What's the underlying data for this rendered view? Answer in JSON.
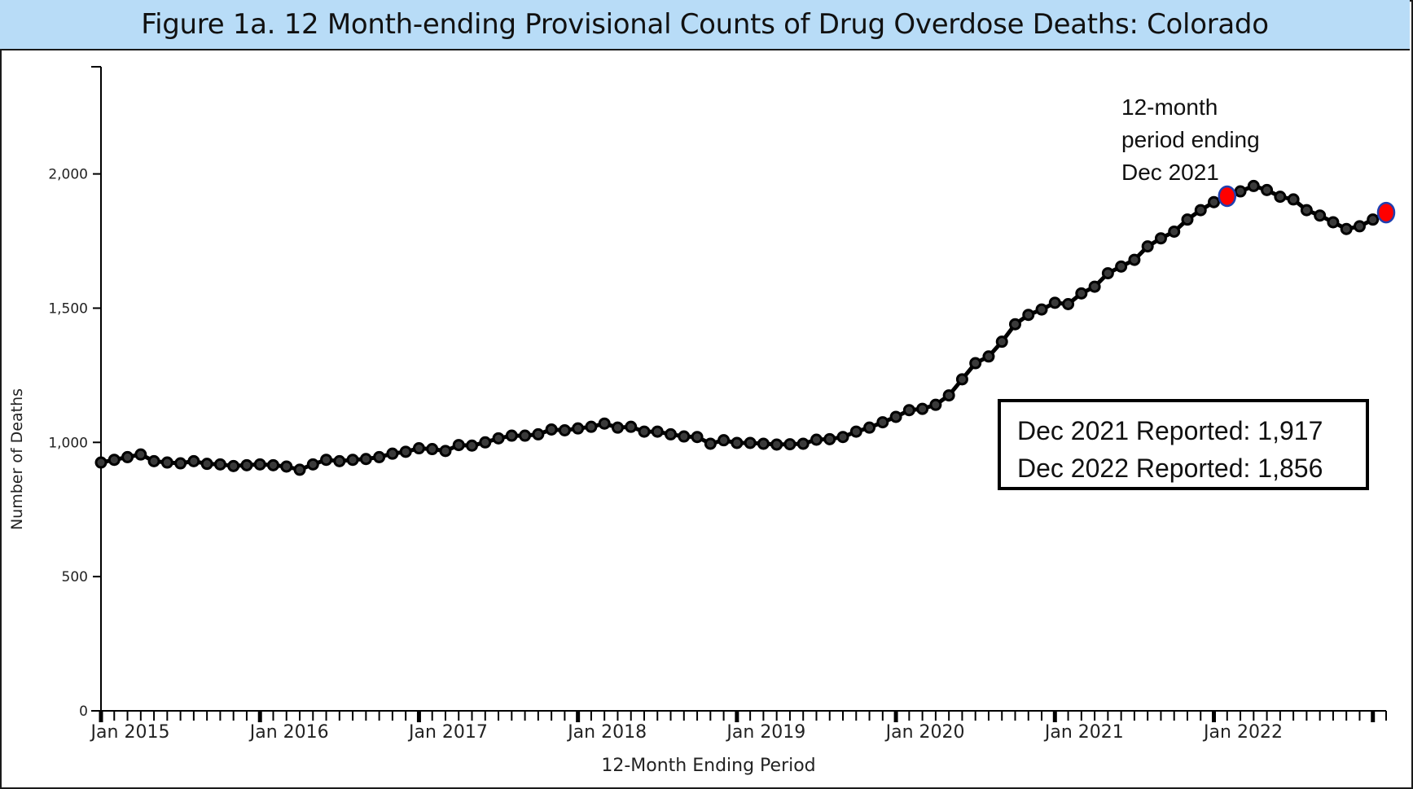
{
  "figure": {
    "title": "Figure 1a. 12 Month-ending Provisional Counts of Drug Overdose Deaths: Colorado"
  },
  "annotation": {
    "line1": "12-month",
    "line2": "period ending",
    "line3": "Dec 2021"
  },
  "summary": {
    "line1": "Dec 2021 Reported: 1,917",
    "line2": "Dec 2022 Reported: 1,856"
  },
  "colors": {
    "line": "#000000",
    "highlight_fill": "#ff0000",
    "highlight_stroke": "#1f3fb0",
    "title_bg": "#b8dcf7"
  },
  "chart_data": {
    "type": "line",
    "title": "Figure 1a. 12 Month-ending Provisional Counts of Drug Overdose Deaths: Colorado",
    "xlabel": "12-Month Ending Period",
    "ylabel": "Number of Deaths",
    "ylim": [
      0,
      2400
    ],
    "yticks": [
      0,
      500,
      1000,
      1500,
      2000
    ],
    "ytick_labels": [
      "0",
      "500",
      "1,000",
      "1,500",
      "2,000"
    ],
    "xtick_labels": [
      "Jan 2015",
      "Jan 2016",
      "Jan 2017",
      "Jan 2018",
      "Jan 2019",
      "Jan 2020",
      "Jan 2021",
      "Jan 2022"
    ],
    "x_start": "Jan 2015",
    "x_end": "Dec 2022",
    "grid": false,
    "legend": "none",
    "series": [
      {
        "values": [
          925,
          935,
          945,
          955,
          930,
          925,
          922,
          930,
          920,
          918,
          912,
          915,
          918,
          915,
          910,
          898,
          918,
          935,
          930,
          935,
          938,
          945,
          958,
          965,
          978,
          975,
          968,
          990,
          988,
          1000,
          1015,
          1025,
          1025,
          1030,
          1048,
          1045,
          1052,
          1058,
          1070,
          1055,
          1058,
          1040,
          1040,
          1030,
          1022,
          1020,
          995,
          1008,
          998,
          998,
          995,
          992,
          993,
          995,
          1010,
          1012,
          1020,
          1040,
          1055,
          1075,
          1095,
          1120,
          1125,
          1140,
          1175,
          1235,
          1295,
          1320,
          1375,
          1440,
          1475,
          1495,
          1520,
          1515,
          1555,
          1580,
          1630,
          1655,
          1680,
          1730,
          1760,
          1785,
          1830,
          1865,
          1895,
          1917,
          1935,
          1955,
          1940,
          1915,
          1905,
          1865,
          1845,
          1820,
          1795,
          1805,
          1830,
          1856
        ]
      }
    ],
    "highlighted_points": [
      {
        "x": "Dec 2021",
        "y": 1917
      },
      {
        "x": "Dec 2022",
        "y": 1856
      }
    ]
  }
}
